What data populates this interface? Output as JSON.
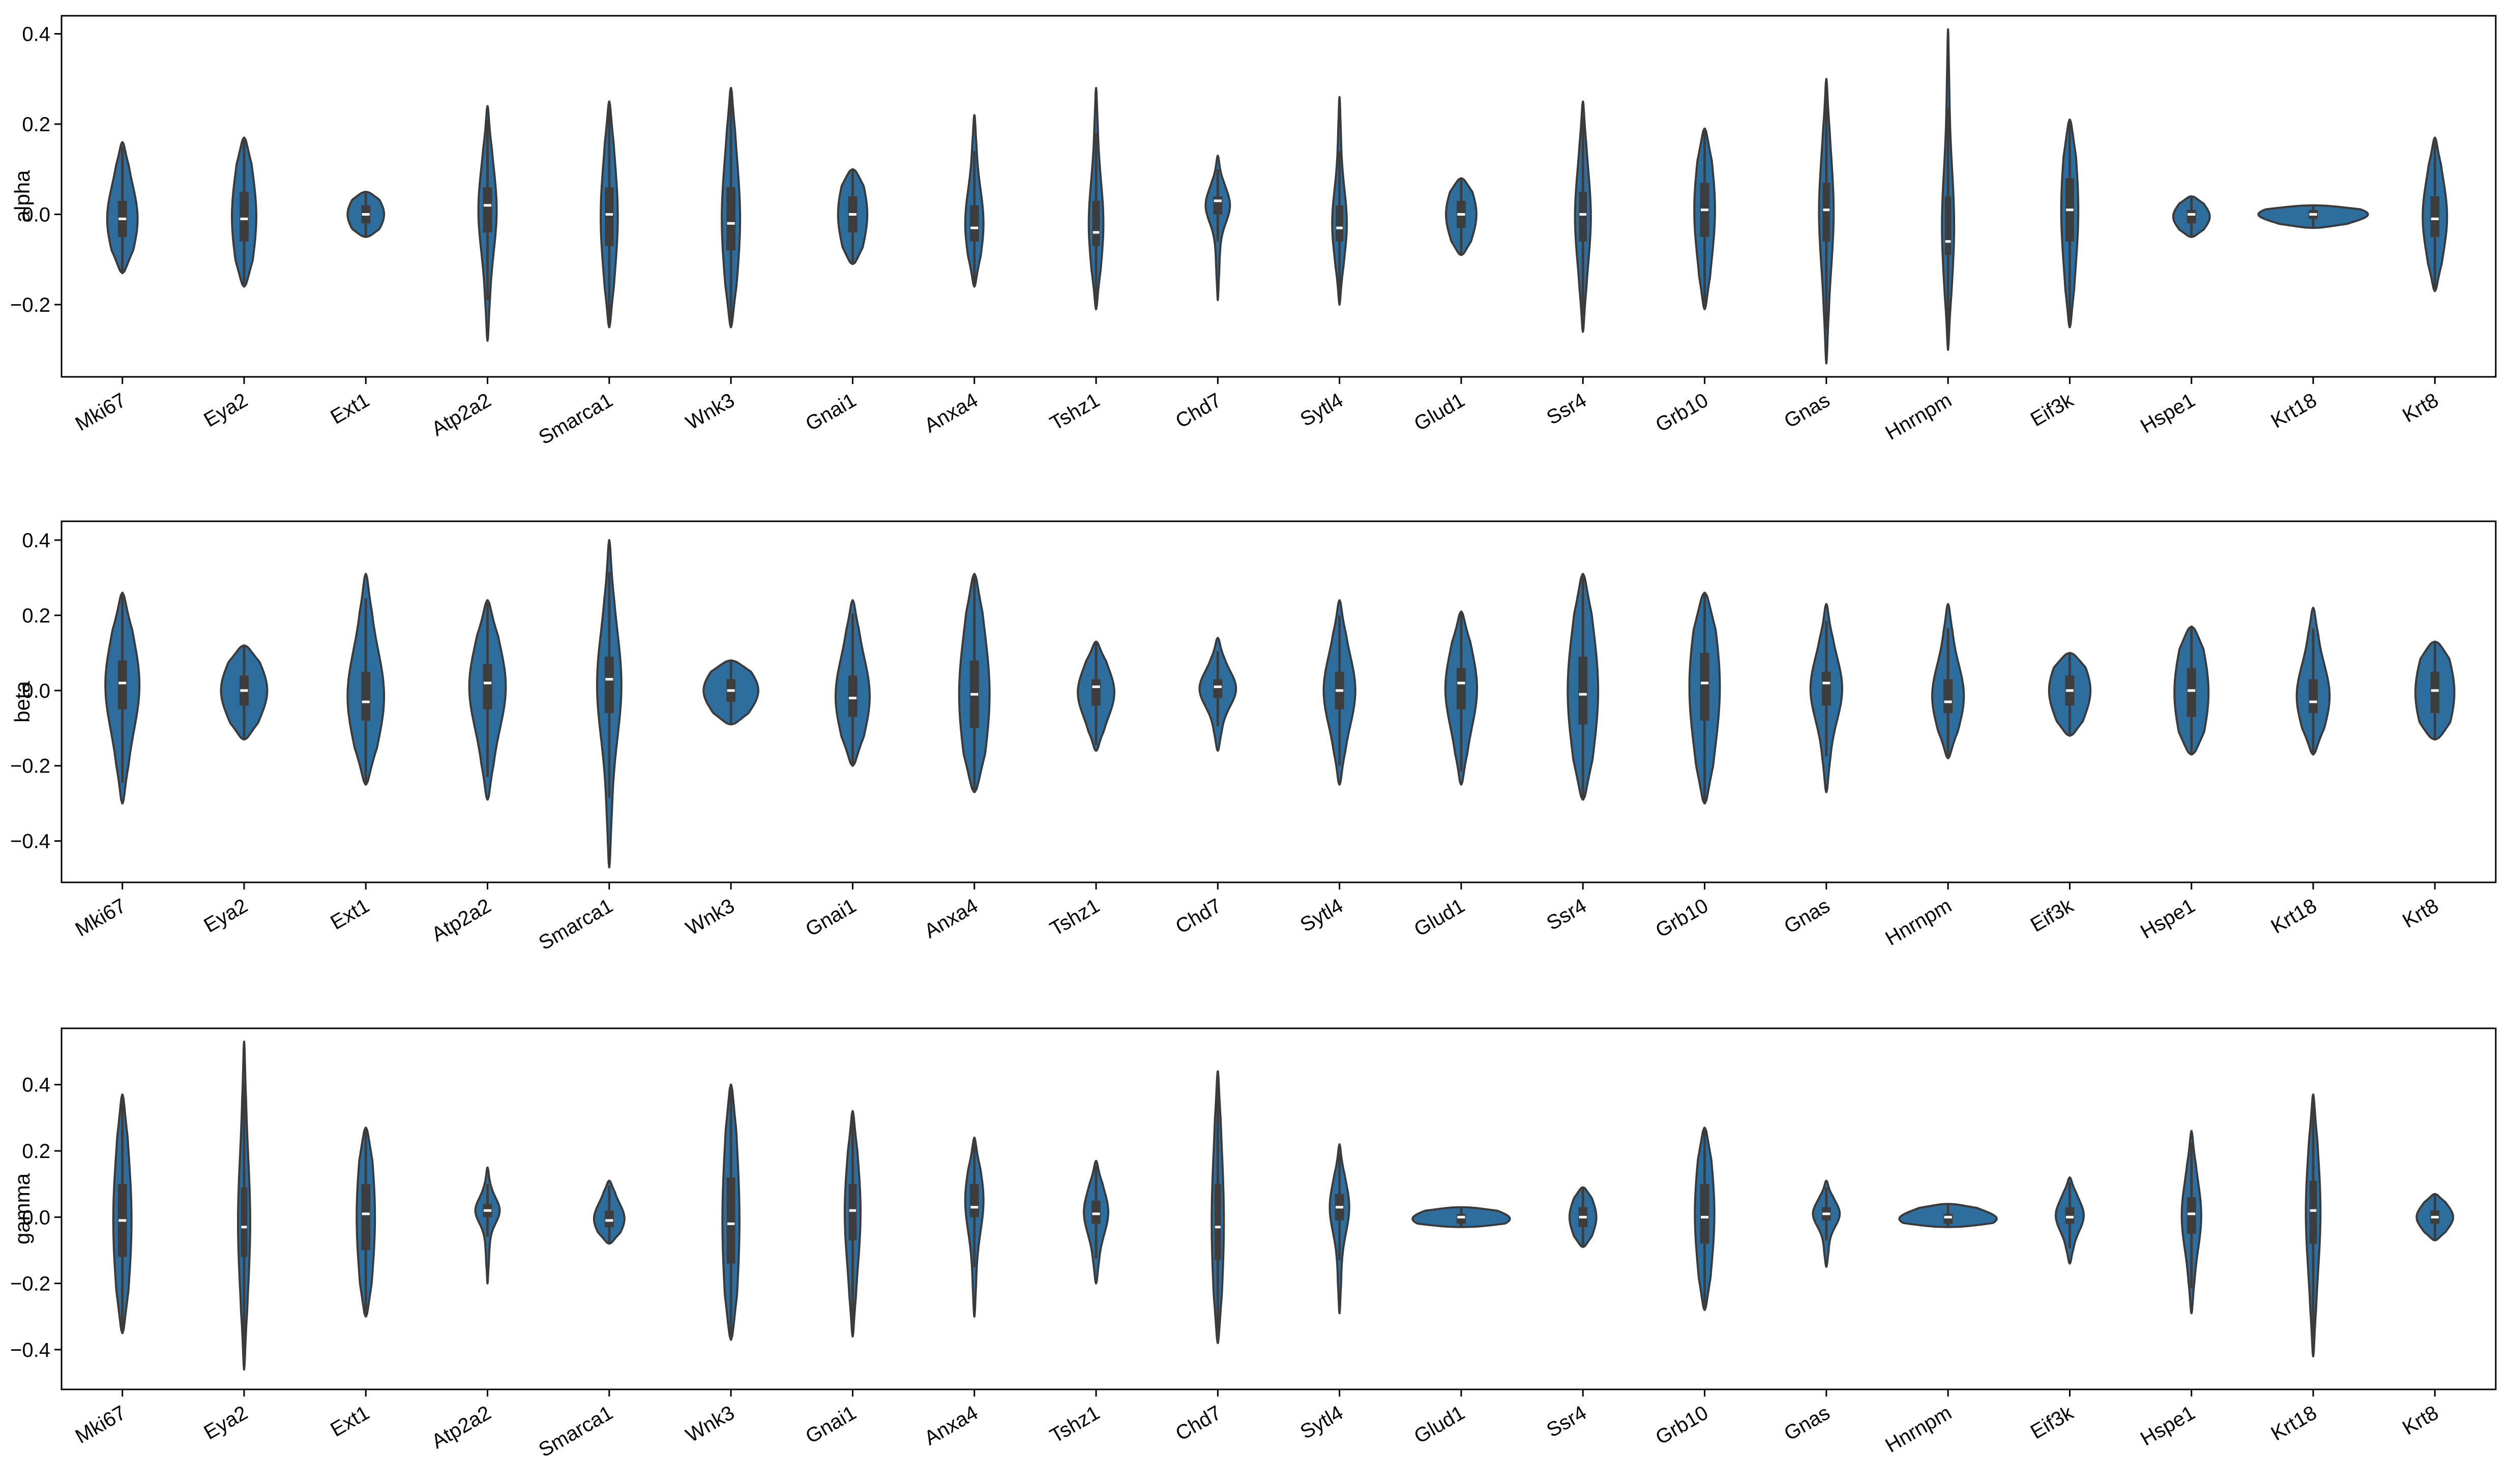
{
  "chart_data": [
    {
      "type": "violin",
      "ylabel": "alpha",
      "ylim": [
        -0.36,
        0.44
      ],
      "yticks": [
        -0.2,
        0.0,
        0.2,
        0.4
      ],
      "ytick_labels": [
        "−0.2",
        "0.0",
        "0.2",
        "0.4"
      ],
      "color": "#2e6e9e",
      "categories": [
        "Mki67",
        "Eya2",
        "Ext1",
        "Atp2a2",
        "Smarca1",
        "Wnk3",
        "Gnai1",
        "Anxa4",
        "Tshz1",
        "Chd7",
        "Sytl4",
        "Glud1",
        "Ssr4",
        "Grb10",
        "Gnas",
        "Hnrnpm",
        "Eif3k",
        "Hspe1",
        "Krt18",
        "Krt8"
      ],
      "violins": [
        {
          "min": -0.13,
          "max": 0.16,
          "q1": -0.05,
          "median": -0.01,
          "q3": 0.03,
          "halfwidth": 0.25
        },
        {
          "min": -0.16,
          "max": 0.17,
          "q1": -0.06,
          "median": -0.01,
          "q3": 0.05,
          "halfwidth": 0.2
        },
        {
          "min": -0.05,
          "max": 0.05,
          "q1": -0.02,
          "median": 0.0,
          "q3": 0.02,
          "halfwidth": 0.3
        },
        {
          "min": -0.28,
          "max": 0.24,
          "q1": -0.04,
          "median": 0.02,
          "q3": 0.06,
          "halfwidth": 0.15
        },
        {
          "min": -0.25,
          "max": 0.25,
          "q1": -0.07,
          "median": 0.0,
          "q3": 0.06,
          "halfwidth": 0.14
        },
        {
          "min": -0.25,
          "max": 0.28,
          "q1": -0.08,
          "median": -0.02,
          "q3": 0.06,
          "halfwidth": 0.15
        },
        {
          "min": -0.11,
          "max": 0.1,
          "q1": -0.04,
          "median": 0.0,
          "q3": 0.04,
          "halfwidth": 0.24
        },
        {
          "min": -0.16,
          "max": 0.22,
          "q1": -0.06,
          "median": -0.03,
          "q3": 0.02,
          "halfwidth": 0.15
        },
        {
          "min": -0.21,
          "max": 0.28,
          "q1": -0.07,
          "median": -0.04,
          "q3": 0.03,
          "halfwidth": 0.12
        },
        {
          "min": -0.19,
          "max": 0.13,
          "q1": 0.0,
          "median": 0.03,
          "q3": 0.04,
          "halfwidth": 0.2
        },
        {
          "min": -0.2,
          "max": 0.26,
          "q1": -0.06,
          "median": -0.03,
          "q3": 0.02,
          "halfwidth": 0.12
        },
        {
          "min": -0.09,
          "max": 0.08,
          "q1": -0.03,
          "median": 0.0,
          "q3": 0.03,
          "halfwidth": 0.25
        },
        {
          "min": -0.26,
          "max": 0.25,
          "q1": -0.06,
          "median": 0.0,
          "q3": 0.05,
          "halfwidth": 0.13
        },
        {
          "min": -0.21,
          "max": 0.19,
          "q1": -0.05,
          "median": 0.01,
          "q3": 0.07,
          "halfwidth": 0.17
        },
        {
          "min": -0.33,
          "max": 0.3,
          "q1": -0.06,
          "median": 0.01,
          "q3": 0.07,
          "halfwidth": 0.12
        },
        {
          "min": -0.3,
          "max": 0.41,
          "q1": -0.09,
          "median": -0.06,
          "q3": 0.04,
          "halfwidth": 0.1
        },
        {
          "min": -0.25,
          "max": 0.21,
          "q1": -0.06,
          "median": 0.01,
          "q3": 0.08,
          "halfwidth": 0.14
        },
        {
          "min": -0.05,
          "max": 0.04,
          "q1": -0.02,
          "median": 0.0,
          "q3": 0.01,
          "halfwidth": 0.3
        },
        {
          "min": -0.03,
          "max": 0.02,
          "q1": -0.01,
          "median": 0.0,
          "q3": 0.01,
          "halfwidth": 0.9
        },
        {
          "min": -0.17,
          "max": 0.17,
          "q1": -0.05,
          "median": -0.01,
          "q3": 0.04,
          "halfwidth": 0.2
        }
      ]
    },
    {
      "type": "violin",
      "ylabel": "beta",
      "ylim": [
        -0.51,
        0.45
      ],
      "yticks": [
        -0.4,
        -0.2,
        0.0,
        0.2,
        0.4
      ],
      "ytick_labels": [
        "−0.4",
        "−0.2",
        "0.0",
        "0.2",
        "0.4"
      ],
      "color": "#2e6e9e",
      "categories": [
        "Mki67",
        "Eya2",
        "Ext1",
        "Atp2a2",
        "Smarca1",
        "Wnk3",
        "Gnai1",
        "Anxa4",
        "Tshz1",
        "Chd7",
        "Sytl4",
        "Glud1",
        "Ssr4",
        "Grb10",
        "Gnas",
        "Hnrnpm",
        "Eif3k",
        "Hspe1",
        "Krt18",
        "Krt8"
      ],
      "violins": [
        {
          "min": -0.3,
          "max": 0.26,
          "q1": -0.05,
          "median": 0.02,
          "q3": 0.08,
          "halfwidth": 0.28
        },
        {
          "min": -0.13,
          "max": 0.12,
          "q1": -0.04,
          "median": 0.0,
          "q3": 0.04,
          "halfwidth": 0.38
        },
        {
          "min": -0.25,
          "max": 0.31,
          "q1": -0.08,
          "median": -0.03,
          "q3": 0.05,
          "halfwidth": 0.3
        },
        {
          "min": -0.29,
          "max": 0.24,
          "q1": -0.05,
          "median": 0.02,
          "q3": 0.07,
          "halfwidth": 0.3
        },
        {
          "min": -0.47,
          "max": 0.4,
          "q1": -0.06,
          "median": 0.03,
          "q3": 0.09,
          "halfwidth": 0.2
        },
        {
          "min": -0.09,
          "max": 0.08,
          "q1": -0.03,
          "median": 0.0,
          "q3": 0.03,
          "halfwidth": 0.45
        },
        {
          "min": -0.2,
          "max": 0.24,
          "q1": -0.07,
          "median": -0.02,
          "q3": 0.04,
          "halfwidth": 0.28
        },
        {
          "min": -0.27,
          "max": 0.31,
          "q1": -0.1,
          "median": -0.01,
          "q3": 0.08,
          "halfwidth": 0.25
        },
        {
          "min": -0.16,
          "max": 0.13,
          "q1": -0.04,
          "median": 0.01,
          "q3": 0.03,
          "halfwidth": 0.3
        },
        {
          "min": -0.16,
          "max": 0.14,
          "q1": -0.02,
          "median": 0.01,
          "q3": 0.03,
          "halfwidth": 0.3
        },
        {
          "min": -0.25,
          "max": 0.24,
          "q1": -0.05,
          "median": 0.0,
          "q3": 0.05,
          "halfwidth": 0.26
        },
        {
          "min": -0.25,
          "max": 0.21,
          "q1": -0.05,
          "median": 0.02,
          "q3": 0.06,
          "halfwidth": 0.26
        },
        {
          "min": -0.29,
          "max": 0.31,
          "q1": -0.09,
          "median": -0.01,
          "q3": 0.09,
          "halfwidth": 0.25
        },
        {
          "min": -0.3,
          "max": 0.26,
          "q1": -0.08,
          "median": 0.02,
          "q3": 0.1,
          "halfwidth": 0.25
        },
        {
          "min": -0.27,
          "max": 0.23,
          "q1": -0.04,
          "median": 0.02,
          "q3": 0.05,
          "halfwidth": 0.26
        },
        {
          "min": -0.18,
          "max": 0.23,
          "q1": -0.06,
          "median": -0.03,
          "q3": 0.03,
          "halfwidth": 0.26
        },
        {
          "min": -0.12,
          "max": 0.1,
          "q1": -0.04,
          "median": 0.0,
          "q3": 0.04,
          "halfwidth": 0.34
        },
        {
          "min": -0.17,
          "max": 0.17,
          "q1": -0.07,
          "median": 0.0,
          "q3": 0.06,
          "halfwidth": 0.28
        },
        {
          "min": -0.17,
          "max": 0.22,
          "q1": -0.06,
          "median": -0.03,
          "q3": 0.03,
          "halfwidth": 0.27
        },
        {
          "min": -0.13,
          "max": 0.13,
          "q1": -0.06,
          "median": 0.0,
          "q3": 0.05,
          "halfwidth": 0.32
        }
      ]
    },
    {
      "type": "violin",
      "ylabel": "gamma",
      "ylim": [
        -0.52,
        0.57
      ],
      "yticks": [
        -0.4,
        -0.2,
        0.0,
        0.2,
        0.4
      ],
      "ytick_labels": [
        "−0.4",
        "−0.2",
        "0.0",
        "0.2",
        "0.4"
      ],
      "color": "#2e6e9e",
      "categories": [
        "Mki67",
        "Eya2",
        "Ext1",
        "Atp2a2",
        "Smarca1",
        "Wnk3",
        "Gnai1",
        "Anxa4",
        "Tshz1",
        "Chd7",
        "Sytl4",
        "Glud1",
        "Ssr4",
        "Grb10",
        "Gnas",
        "Hnrnpm",
        "Eif3k",
        "Hspe1",
        "Krt18",
        "Krt8"
      ],
      "violins": [
        {
          "min": -0.35,
          "max": 0.37,
          "q1": -0.12,
          "median": -0.01,
          "q3": 0.1,
          "halfwidth": 0.15
        },
        {
          "min": -0.46,
          "max": 0.53,
          "q1": -0.12,
          "median": -0.03,
          "q3": 0.09,
          "halfwidth": 0.1
        },
        {
          "min": -0.3,
          "max": 0.27,
          "q1": -0.1,
          "median": 0.01,
          "q3": 0.1,
          "halfwidth": 0.15
        },
        {
          "min": -0.2,
          "max": 0.15,
          "q1": 0.0,
          "median": 0.02,
          "q3": 0.04,
          "halfwidth": 0.2
        },
        {
          "min": -0.08,
          "max": 0.11,
          "q1": -0.03,
          "median": -0.01,
          "q3": 0.02,
          "halfwidth": 0.25
        },
        {
          "min": -0.37,
          "max": 0.4,
          "q1": -0.14,
          "median": -0.02,
          "q3": 0.12,
          "halfwidth": 0.14
        },
        {
          "min": -0.36,
          "max": 0.32,
          "q1": -0.07,
          "median": 0.02,
          "q3": 0.1,
          "halfwidth": 0.13
        },
        {
          "min": -0.3,
          "max": 0.24,
          "q1": 0.0,
          "median": 0.03,
          "q3": 0.1,
          "halfwidth": 0.15
        },
        {
          "min": -0.2,
          "max": 0.17,
          "q1": -0.02,
          "median": 0.01,
          "q3": 0.05,
          "halfwidth": 0.2
        },
        {
          "min": -0.38,
          "max": 0.44,
          "q1": -0.13,
          "median": -0.03,
          "q3": 0.1,
          "halfwidth": 0.1
        },
        {
          "min": -0.29,
          "max": 0.22,
          "q1": -0.01,
          "median": 0.03,
          "q3": 0.07,
          "halfwidth": 0.16
        },
        {
          "min": -0.03,
          "max": 0.03,
          "q1": -0.02,
          "median": 0.0,
          "q3": 0.01,
          "halfwidth": 0.8
        },
        {
          "min": -0.09,
          "max": 0.09,
          "q1": -0.03,
          "median": 0.0,
          "q3": 0.03,
          "halfwidth": 0.22
        },
        {
          "min": -0.28,
          "max": 0.27,
          "q1": -0.08,
          "median": 0.0,
          "q3": 0.1,
          "halfwidth": 0.16
        },
        {
          "min": -0.15,
          "max": 0.11,
          "q1": -0.01,
          "median": 0.01,
          "q3": 0.03,
          "halfwidth": 0.22
        },
        {
          "min": -0.03,
          "max": 0.04,
          "q1": -0.02,
          "median": 0.0,
          "q3": 0.01,
          "halfwidth": 0.8
        },
        {
          "min": -0.14,
          "max": 0.12,
          "q1": -0.02,
          "median": 0.0,
          "q3": 0.03,
          "halfwidth": 0.23
        },
        {
          "min": -0.29,
          "max": 0.26,
          "q1": -0.05,
          "median": 0.01,
          "q3": 0.06,
          "halfwidth": 0.16
        },
        {
          "min": -0.42,
          "max": 0.37,
          "q1": -0.08,
          "median": 0.02,
          "q3": 0.11,
          "halfwidth": 0.12
        },
        {
          "min": -0.07,
          "max": 0.07,
          "q1": -0.02,
          "median": 0.0,
          "q3": 0.02,
          "halfwidth": 0.3
        }
      ]
    }
  ]
}
